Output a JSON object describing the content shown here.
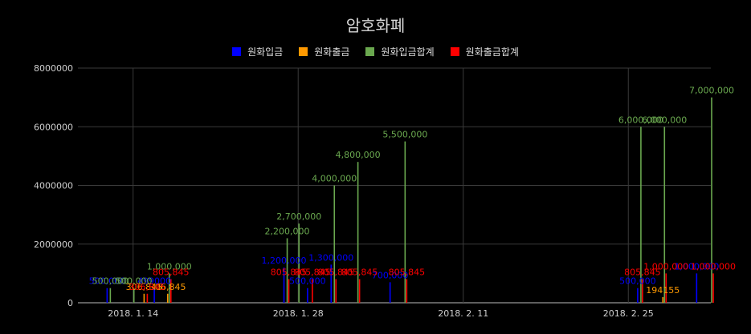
{
  "chart_data": {
    "type": "bar",
    "title": "암호화폐",
    "xlabel": "",
    "ylabel": "",
    "ylim": [
      0,
      8000000
    ],
    "yticks": [
      "0",
      "2000000",
      "4000000",
      "6000000",
      "8000000"
    ],
    "xticks": [
      {
        "date": "2018-01-14",
        "label": "2018. 1. 14"
      },
      {
        "date": "2018-01-28",
        "label": "2018. 1. 28"
      },
      {
        "date": "2018-02-11",
        "label": "2018. 2. 11"
      },
      {
        "date": "2018-02-25",
        "label": "2018. 2. 25"
      }
    ],
    "xlim": [
      "2018-01-10",
      "2018-03-04"
    ],
    "grid": true,
    "legend_position": "top",
    "series": [
      {
        "name": "원화입금",
        "color": "#0000ff",
        "points": [
          {
            "date": "2018-01-12",
            "value": 500000,
            "label": "500,000"
          },
          {
            "date": "2018-01-16",
            "value": 499000,
            "label": "499000"
          },
          {
            "date": "2018-01-27",
            "value": 1200000,
            "label": "1,200,000"
          },
          {
            "date": "2018-01-29",
            "value": 500000,
            "label": "500,000"
          },
          {
            "date": "2018-01-31",
            "value": 1300000,
            "label": "1,300,000"
          },
          {
            "date": "2018-02-05",
            "value": 700000,
            "label": "700,000"
          },
          {
            "date": "2018-02-26",
            "value": 500000,
            "label": "500,000"
          },
          {
            "date": "2018-03-03",
            "value": 1000000,
            "label": "1,000,000"
          }
        ]
      },
      {
        "name": "원화출금",
        "color": "#ff9900",
        "points": [
          {
            "date": "2018-01-15",
            "value": 306845,
            "label": "306,845"
          },
          {
            "date": "2018-01-17",
            "value": 306845,
            "label": "306,845"
          },
          {
            "date": "2018-02-28",
            "value": 194155,
            "label": "194155"
          }
        ]
      },
      {
        "name": "원화입금합계",
        "color": "#6aa84f",
        "points": [
          {
            "date": "2018-01-12",
            "value": 500000,
            "label": "500,000"
          },
          {
            "date": "2018-01-14",
            "value": 500000,
            "label": "500,000"
          },
          {
            "date": "2018-01-17",
            "value": 1000000,
            "label": "1,000,000"
          },
          {
            "date": "2018-01-27",
            "value": 2200000,
            "label": "2,200,000"
          },
          {
            "date": "2018-01-28",
            "value": 2700000,
            "label": "2,700,000"
          },
          {
            "date": "2018-01-31",
            "value": 4000000,
            "label": "4,000,000"
          },
          {
            "date": "2018-02-02",
            "value": 4800000,
            "label": "4,800,000"
          },
          {
            "date": "2018-02-06",
            "value": 5500000,
            "label": "5,500,000"
          },
          {
            "date": "2018-02-26",
            "value": 6000000,
            "label": "6,000,000"
          },
          {
            "date": "2018-02-28",
            "value": 6000000,
            "label": "6,000,000"
          },
          {
            "date": "2018-03-04",
            "value": 7000000,
            "label": "7,000,000"
          }
        ]
      },
      {
        "name": "원화출금합계",
        "color": "#ff0000",
        "points": [
          {
            "date": "2018-01-15",
            "value": 306845,
            "label": "306,845"
          },
          {
            "date": "2018-01-17",
            "value": 805845,
            "label": "805,845"
          },
          {
            "date": "2018-01-27",
            "value": 805845,
            "label": "805,845"
          },
          {
            "date": "2018-01-29",
            "value": 805845,
            "label": "805,845"
          },
          {
            "date": "2018-01-31",
            "value": 805845,
            "label": "805,845"
          },
          {
            "date": "2018-02-02",
            "value": 805845,
            "label": "805,845"
          },
          {
            "date": "2018-02-06",
            "value": 805845,
            "label": "805,845"
          },
          {
            "date": "2018-02-26",
            "value": 805845,
            "label": "805,845"
          },
          {
            "date": "2018-02-28",
            "value": 1000000,
            "label": "1,000,000"
          },
          {
            "date": "2018-03-04",
            "value": 1000000,
            "label": "1,000,000"
          }
        ]
      }
    ]
  }
}
